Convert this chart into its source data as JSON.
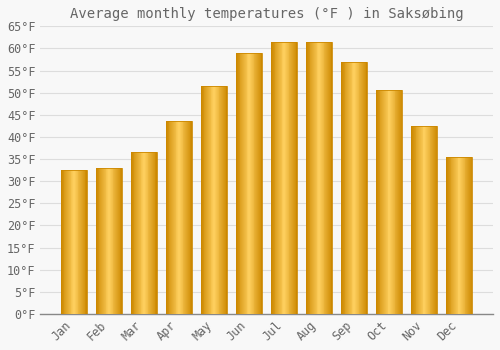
{
  "title": "Average monthly temperatures (°F ) in Saksøbing",
  "months": [
    "Jan",
    "Feb",
    "Mar",
    "Apr",
    "May",
    "Jun",
    "Jul",
    "Aug",
    "Sep",
    "Oct",
    "Nov",
    "Dec"
  ],
  "values": [
    32.5,
    33.0,
    36.5,
    43.5,
    51.5,
    59.0,
    61.5,
    61.5,
    57.0,
    50.5,
    42.5,
    35.5
  ],
  "bar_color_light": "#FFD060",
  "bar_color_main": "#FFA500",
  "bar_edge_color": "#CC8800",
  "background_color": "#F8F8F8",
  "grid_color": "#DDDDDD",
  "text_color": "#666666",
  "ylim": [
    0,
    65
  ],
  "yticks": [
    0,
    5,
    10,
    15,
    20,
    25,
    30,
    35,
    40,
    45,
    50,
    55,
    60,
    65
  ],
  "title_fontsize": 10,
  "tick_fontsize": 8.5,
  "bar_width": 0.75
}
